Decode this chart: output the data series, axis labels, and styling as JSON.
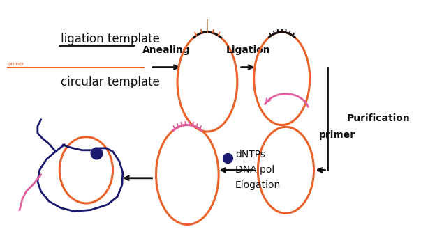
{
  "bg_color": "#ffffff",
  "orange": "#e8622a",
  "dark_navy": "#1a1a6e",
  "pink": "#e060a0",
  "black": "#111111",
  "ligation_template_text": "ligation template",
  "circular_template_text": "circular template",
  "primer_tiny_text": "primer",
  "anealing_text": "Anealing",
  "ligation_text": "Ligation",
  "purification_text": "Purification",
  "dntps_text": "dNTPs",
  "dnapol_text": "DNA pol",
  "elongation_text": "Elogation",
  "primer_label": "primer",
  "fig_w": 6.03,
  "fig_h": 3.39,
  "dpi": 100
}
